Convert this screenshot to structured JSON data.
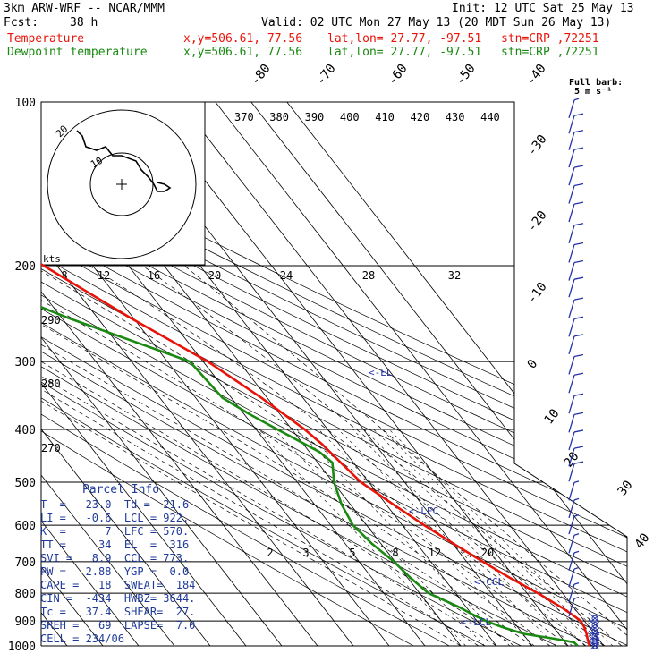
{
  "header": {
    "model": "3km ARW-WRF -- NCAR/MMM",
    "init": "Init: 12 UTC Sat 25 May 13",
    "fcst_label": "Fcst:",
    "fcst_value": "38 h",
    "valid": "Valid: 02 UTC Mon 27 May 13 (20 MDT Sun 26 May 13)"
  },
  "legend": [
    {
      "name": "Temperature",
      "xy": "x,y=506.61, 77.56",
      "latlon": "lat,lon= 27.77, -97.51",
      "stn": "stn=CRP ,72251",
      "color": "#e8140a"
    },
    {
      "name": "Dewpoint temperature",
      "xy": "x,y=506.61, 77.56",
      "latlon": "lat,lon= 27.77, -97.51",
      "stn": "stn=CRP ,72251",
      "color": "#1a8a12"
    }
  ],
  "colors": {
    "temperature": "#e8140a",
    "dewpoint": "#1a8a12",
    "barbs": "#2233aa",
    "parcel_text": "#1f3a9a",
    "grid": "#000000"
  },
  "barb_legend": {
    "title": "Full barb:",
    "value": "5 m s⁻¹"
  },
  "parcel_info": {
    "title": "Parcel Info",
    "rows": [
      [
        "T  =   23.0",
        "Td =  21.6"
      ],
      [
        "LI =   -0.6",
        "LCL = 922."
      ],
      [
        "K  =      7",
        "LFC = 570."
      ],
      [
        "TT =     34",
        "EL  =  316"
      ],
      [
        "SVI =   8.9",
        "CCL = 773."
      ],
      [
        "PW =   2.88",
        "YGP =  0.0"
      ],
      [
        "CAPE =   18",
        "SWEAT=  184"
      ],
      [
        "CIN =  -434",
        "HWBZ= 3644."
      ],
      [
        "Tc =   37.4",
        "SHEAR=  27."
      ],
      [
        "SREH =   69",
        "LAPSE=  7.0"
      ],
      [
        "CELL = 234/06",
        ""
      ]
    ]
  },
  "level_markers": [
    "<-EL",
    "<-LFC",
    "<-CCL",
    "<-LCL"
  ],
  "hodograph": {
    "unit_label": "kts",
    "ring_labels": [
      "10",
      "20"
    ]
  },
  "chart_data": {
    "type": "line",
    "title": "",
    "xlabel": "",
    "ylabel": "",
    "y_scale": "log-pressure",
    "ylim": [
      1000,
      100
    ],
    "pressure_ticks": [
      100,
      200,
      300,
      400,
      500,
      600,
      700,
      800,
      900,
      1000
    ],
    "isotherm_labels": [
      "-80",
      "-70",
      "-60",
      "-50",
      "-40",
      "-30",
      "-20",
      "-10",
      "0",
      "10",
      "20",
      "30",
      "40"
    ],
    "theta_labels_top": [
      "370",
      "380",
      "390",
      "400",
      "410",
      "420",
      "430",
      "440"
    ],
    "dry_adiabat_labels": [
      "290",
      "280",
      "270"
    ],
    "mixing_ratio_upper": [
      "8",
      "12",
      "16",
      "20",
      "24",
      "28",
      "32"
    ],
    "mixing_ratio_lower": [
      "2",
      "3",
      "5",
      "8",
      "12",
      "20"
    ],
    "series": [
      {
        "name": "Temperature",
        "color": "#e8140a",
        "points": [
          [
            1000,
            26.0
          ],
          [
            975,
            26.8
          ],
          [
            950,
            27.8
          ],
          [
            925,
            28.6
          ],
          [
            900,
            29.0
          ],
          [
            875,
            27.9
          ],
          [
            850,
            26.6
          ],
          [
            800,
            23.1
          ],
          [
            750,
            18.6
          ],
          [
            700,
            14.5
          ],
          [
            650,
            10.4
          ],
          [
            600,
            6.1
          ],
          [
            550,
            2.0
          ],
          [
            500,
            -2.2
          ],
          [
            450,
            -3.9
          ],
          [
            425,
            -4.8
          ],
          [
            400,
            -6.4
          ],
          [
            350,
            -11.6
          ],
          [
            300,
            -18.7
          ],
          [
            250,
            -30.7
          ],
          [
            200,
            -43.7
          ],
          [
            175,
            -51.2
          ],
          [
            150,
            -60.3
          ],
          [
            130,
            -64.0
          ],
          [
            115,
            -65.2
          ],
          [
            100,
            -70.0
          ]
        ]
      },
      {
        "name": "Dewpoint temperature",
        "color": "#1a8a12",
        "points": [
          [
            1000,
            22.7
          ],
          [
            985,
            22.4
          ],
          [
            970,
            17.8
          ],
          [
            950,
            10.3
          ],
          [
            925,
            5.9
          ],
          [
            900,
            2.5
          ],
          [
            875,
            0.1
          ],
          [
            850,
            -1.8
          ],
          [
            800,
            -7.5
          ],
          [
            750,
            -9.2
          ],
          [
            700,
            -10.3
          ],
          [
            650,
            -12.5
          ],
          [
            600,
            -13.8
          ],
          [
            550,
            -12.5
          ],
          [
            500,
            -9.7
          ],
          [
            460,
            -5.9
          ],
          [
            440,
            -7.2
          ],
          [
            400,
            -14.0
          ],
          [
            375,
            -18.5
          ],
          [
            350,
            -22.5
          ],
          [
            300,
            -23.7
          ],
          [
            250,
            -48.0
          ],
          [
            220,
            -62.5
          ],
          [
            200,
            -69.8
          ],
          [
            175,
            -77.0
          ],
          [
            150,
            -84.5
          ],
          [
            130,
            -89.3
          ],
          [
            115,
            -93.3
          ],
          [
            100,
            -98.8
          ]
        ]
      }
    ],
    "wind_barbs": [
      {
        "p": 1000,
        "type": "calm"
      },
      {
        "p": 980,
        "type": "calm"
      },
      {
        "p": 960,
        "type": "calm"
      },
      {
        "p": 940,
        "type": "calm"
      },
      {
        "p": 915,
        "type": "calm"
      },
      {
        "p": 890,
        "type": "calm"
      },
      {
        "p": 850,
        "type": "half"
      },
      {
        "p": 800,
        "type": "half"
      },
      {
        "p": 750,
        "type": "half"
      },
      {
        "p": 700,
        "type": "half"
      },
      {
        "p": 650,
        "type": "half"
      },
      {
        "p": 600,
        "type": "half"
      },
      {
        "p": 560,
        "type": "half"
      },
      {
        "p": 520,
        "type": "half"
      },
      {
        "p": 480,
        "type": "full"
      },
      {
        "p": 450,
        "type": "full"
      },
      {
        "p": 420,
        "type": "full"
      },
      {
        "p": 390,
        "type": "full"
      },
      {
        "p": 360,
        "type": "full"
      },
      {
        "p": 330,
        "type": "full"
      },
      {
        "p": 305,
        "type": "full"
      },
      {
        "p": 280,
        "type": "full"
      },
      {
        "p": 260,
        "type": "full"
      },
      {
        "p": 240,
        "type": "full"
      },
      {
        "p": 220,
        "type": "full"
      },
      {
        "p": 205,
        "type": "full"
      },
      {
        "p": 190,
        "type": "full"
      },
      {
        "p": 175,
        "type": "full"
      },
      {
        "p": 160,
        "type": "full"
      },
      {
        "p": 148,
        "type": "full"
      },
      {
        "p": 137,
        "type": "full"
      },
      {
        "p": 127,
        "type": "full"
      },
      {
        "p": 118,
        "type": "full"
      },
      {
        "p": 110,
        "type": "full"
      },
      {
        "p": 103,
        "type": "half"
      }
    ]
  }
}
